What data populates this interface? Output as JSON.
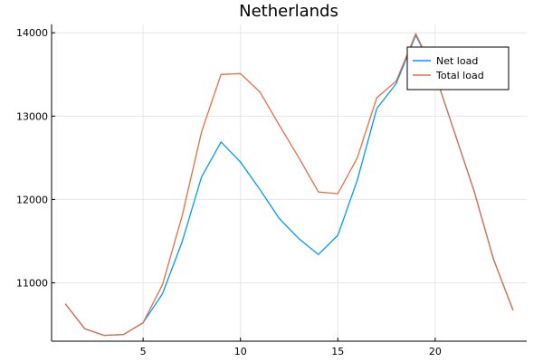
{
  "chart_data": {
    "type": "line",
    "title": "Netherlands",
    "xlabel": "",
    "ylabel": "",
    "xlim": [
      0.3,
      24.7
    ],
    "ylim": [
      10300,
      14100
    ],
    "x_ticks": [
      5,
      10,
      15,
      20
    ],
    "y_ticks": [
      11000,
      12000,
      13000,
      14000
    ],
    "grid": true,
    "legend_position": "top-right",
    "x": [
      1,
      2,
      3,
      4,
      5,
      6,
      7,
      8,
      9,
      10,
      11,
      12,
      13,
      14,
      15,
      16,
      17,
      18,
      19,
      20,
      21,
      22,
      23,
      24
    ],
    "series": [
      {
        "name": "Net load",
        "color": "#009AFA",
        "values": [
          10750,
          10450,
          10370,
          10380,
          10520,
          10870,
          11490,
          12270,
          12690,
          12450,
          12120,
          11770,
          11530,
          11340,
          11570,
          12230,
          13090,
          13390,
          13970,
          13500,
          12800,
          12100,
          11280,
          10670
        ]
      },
      {
        "name": "Total load",
        "color": "#E26F46",
        "values": [
          10750,
          10450,
          10370,
          10380,
          10520,
          10980,
          11800,
          12810,
          13500,
          13510,
          13290,
          12890,
          12500,
          12090,
          12070,
          12500,
          13220,
          13420,
          13990,
          13500,
          12800,
          12100,
          11280,
          10670
        ]
      }
    ]
  }
}
